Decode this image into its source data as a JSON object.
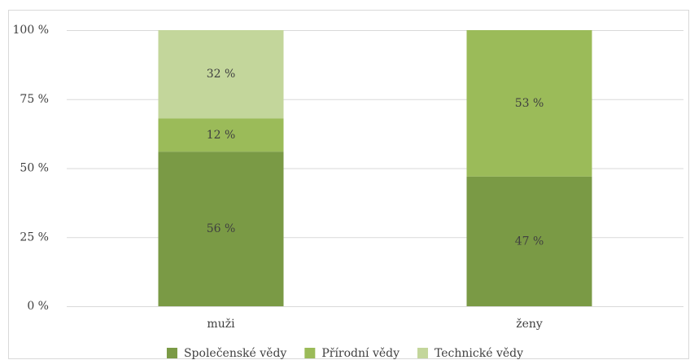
{
  "chart_data": {
    "type": "stacked-bar",
    "categories": [
      "muži",
      "ženy"
    ],
    "series": [
      {
        "name": "Společenské vědy",
        "color": "#7a9a45",
        "values": [
          56,
          47
        ],
        "value_labels": [
          "56 %",
          "47 %"
        ]
      },
      {
        "name": "Přírodní vědy",
        "color": "#9bbb59",
        "values": [
          12,
          53
        ],
        "value_labels": [
          "12 %",
          "53 %"
        ]
      },
      {
        "name": "Technické vědy",
        "color": "#c3d69b",
        "values": [
          32,
          null
        ],
        "value_labels": [
          "32 %",
          null
        ]
      }
    ],
    "ylim": [
      0,
      100
    ],
    "yticks": [
      {
        "value": 0,
        "label": "0 %"
      },
      {
        "value": 25,
        "label": "25 %"
      },
      {
        "value": 50,
        "label": "50 %"
      },
      {
        "value": 75,
        "label": "75 %"
      },
      {
        "value": 100,
        "label": "100 %"
      }
    ],
    "grid": true,
    "legend": "bottom"
  }
}
